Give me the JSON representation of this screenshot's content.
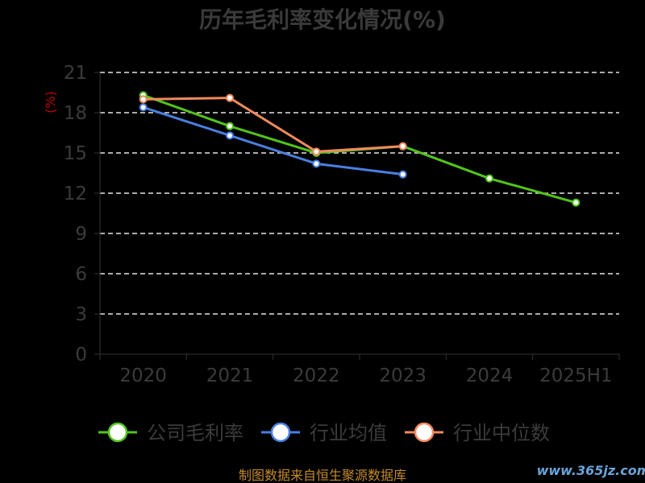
{
  "chart_data": {
    "type": "line",
    "title": "历年毛利率变化情况(%)",
    "ylabel": "(%)",
    "xlabel": "",
    "categories": [
      "2020",
      "2021",
      "2022",
      "2023",
      "2024",
      "2025H1"
    ],
    "ylim": [
      0,
      21
    ],
    "yticks": [
      0,
      3,
      6,
      9,
      12,
      15,
      18,
      21
    ],
    "grid": true,
    "legend_position": "bottom",
    "series": [
      {
        "name": "公司毛利率",
        "color": "#52c41a",
        "values": [
          19.3,
          17.0,
          15.0,
          15.5,
          13.1,
          11.3
        ]
      },
      {
        "name": "行业均值",
        "color": "#4a7fe0",
        "values": [
          18.4,
          16.3,
          14.2,
          13.4,
          null,
          null
        ]
      },
      {
        "name": "行业中位数",
        "color": "#f08a5d",
        "values": [
          19.0,
          19.1,
          15.1,
          15.5,
          null,
          null
        ]
      }
    ]
  },
  "footer": {
    "source": "制图数据来自恒生聚源数据库",
    "watermark": "www.365jz.com"
  }
}
